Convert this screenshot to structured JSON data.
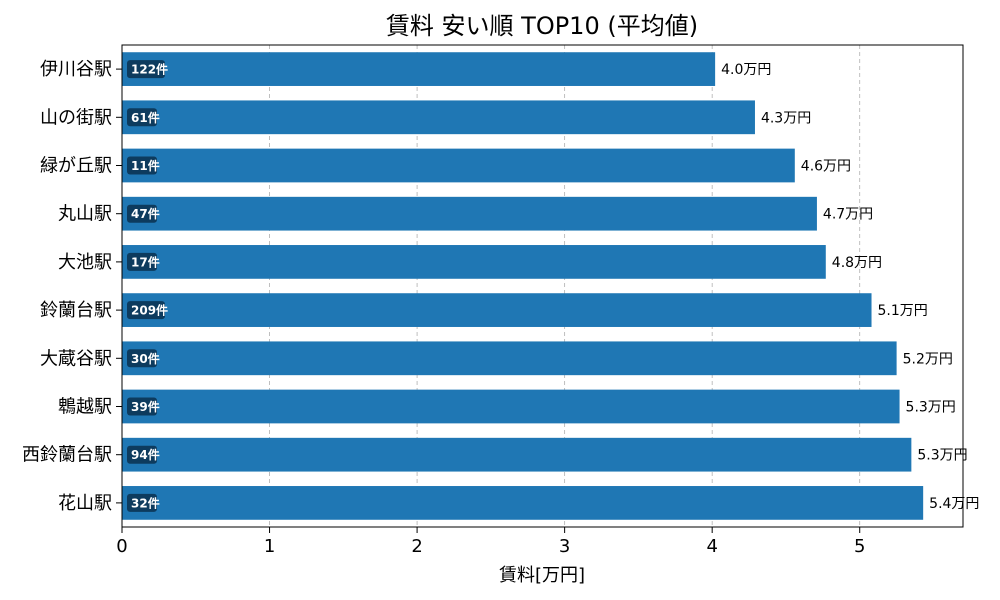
{
  "chart_data": {
    "type": "bar",
    "orientation": "horizontal",
    "title": "賃料 安い順 TOP10 (平均値)",
    "xlabel": "賃料[万円]",
    "ylabel": "",
    "xlim": [
      0,
      5.7
    ],
    "xticks": [
      0,
      1,
      2,
      3,
      4,
      5
    ],
    "grid": "x-dashed",
    "bar_color": "#1f77b4",
    "badge_color": "#0d3b5e",
    "categories": [
      "伊川谷駅",
      "山の街駅",
      "緑が丘駅",
      "丸山駅",
      "大池駅",
      "鈴蘭台駅",
      "大蔵谷駅",
      "鵯越駅",
      "西鈴蘭台駅",
      "花山駅"
    ],
    "values": [
      4.02,
      4.29,
      4.56,
      4.71,
      4.77,
      5.08,
      5.25,
      5.27,
      5.35,
      5.43
    ],
    "value_labels": [
      "4.0万円",
      "4.3万円",
      "4.6万円",
      "4.7万円",
      "4.8万円",
      "5.1万円",
      "5.2万円",
      "5.3万円",
      "5.3万円",
      "5.4万円"
    ],
    "count_labels": [
      "122件",
      "61件",
      "11件",
      "47件",
      "17件",
      "209件",
      "30件",
      "39件",
      "94件",
      "32件"
    ]
  }
}
